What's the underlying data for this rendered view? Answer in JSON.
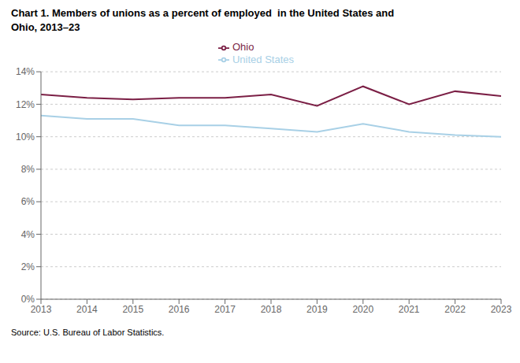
{
  "chart_data": {
    "type": "line",
    "title": "Chart 1. Members of unions as a percent of employed  in the United States and",
    "subtitle": "Ohio, 2013–23",
    "x": [
      2013,
      2014,
      2015,
      2016,
      2017,
      2018,
      2019,
      2020,
      2021,
      2022,
      2023
    ],
    "series": [
      {
        "name": "Ohio",
        "color": "#7B1F45",
        "values": [
          12.6,
          12.4,
          12.3,
          12.4,
          12.4,
          12.6,
          11.9,
          13.1,
          12.0,
          12.8,
          12.5
        ]
      },
      {
        "name": "United States",
        "color": "#A8D0E6",
        "values": [
          11.3,
          11.1,
          11.1,
          10.7,
          10.7,
          10.5,
          10.3,
          10.8,
          10.3,
          10.1,
          10.0
        ]
      }
    ],
    "xlim": [
      2013,
      2023
    ],
    "xticks": [
      2013,
      2014,
      2015,
      2016,
      2017,
      2018,
      2019,
      2020,
      2021,
      2022,
      2023
    ],
    "ylim": [
      0,
      14
    ],
    "yticks": [
      {
        "value": 0,
        "label": "0%"
      },
      {
        "value": 2,
        "label": "2%"
      },
      {
        "value": 4,
        "label": "4%"
      },
      {
        "value": 6,
        "label": "6%"
      },
      {
        "value": 8,
        "label": "8%"
      },
      {
        "value": 10,
        "label": "10%"
      },
      {
        "value": 12,
        "label": "12%"
      },
      {
        "value": 14,
        "label": "14%"
      }
    ],
    "grid": true,
    "legend": "top",
    "annotations": [
      "Source: U.S. Bureau of Labor Statistics."
    ]
  }
}
